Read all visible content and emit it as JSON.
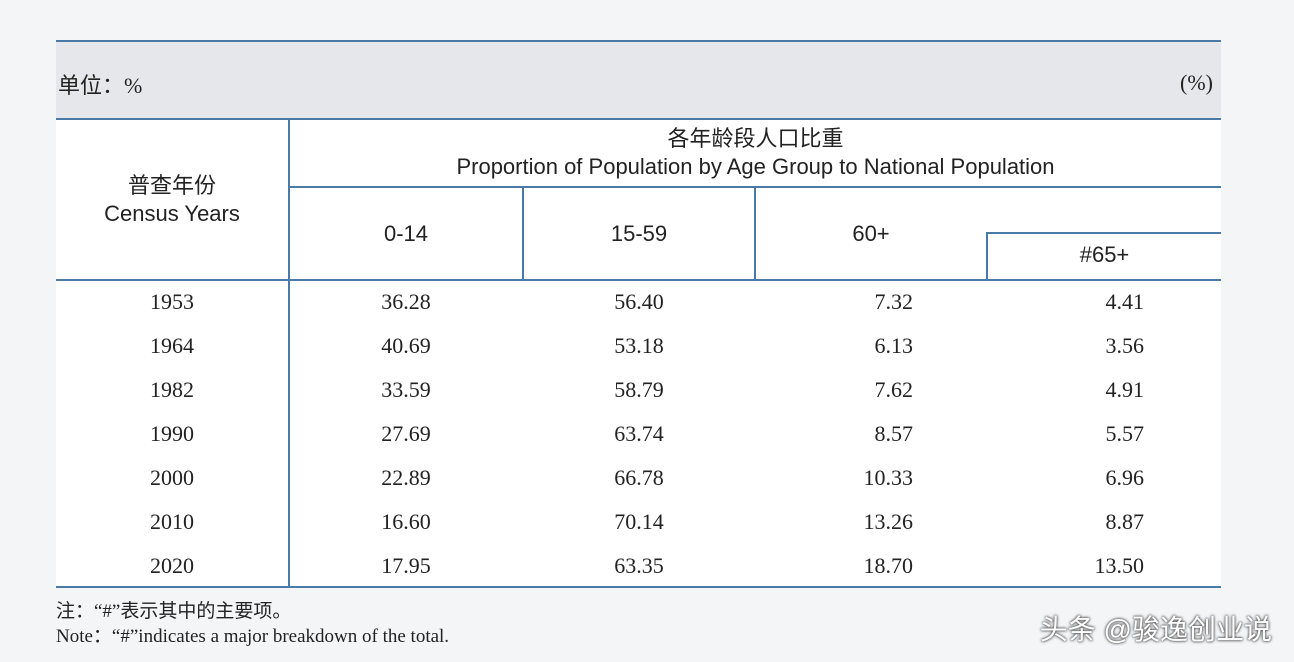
{
  "unit_label": "单位：%",
  "unit_label_en": "(%)",
  "header": {
    "census_years_zh": "普查年份",
    "census_years_en": "Census Years",
    "proportion_zh": "各年龄段人口比重",
    "proportion_en": "Proportion of Population by Age Group to National Population",
    "columns": [
      "0-14",
      "15-59",
      "60+",
      "#65+"
    ]
  },
  "rows": [
    {
      "year": "1953",
      "a": "36.28",
      "b": "56.40",
      "c": "7.32",
      "d": "4.41"
    },
    {
      "year": "1964",
      "a": "40.69",
      "b": "53.18",
      "c": "6.13",
      "d": "3.56"
    },
    {
      "year": "1982",
      "a": "33.59",
      "b": "58.79",
      "c": "7.62",
      "d": "4.91"
    },
    {
      "year": "1990",
      "a": "27.69",
      "b": "63.74",
      "c": "8.57",
      "d": "5.57"
    },
    {
      "year": "2000",
      "a": "22.89",
      "b": "66.78",
      "c": "10.33",
      "d": "6.96"
    },
    {
      "year": "2010",
      "a": "16.60",
      "b": "70.14",
      "c": "13.26",
      "d": "8.87"
    },
    {
      "year": "2020",
      "a": "17.95",
      "b": "63.35",
      "c": "18.70",
      "d": "13.50"
    }
  ],
  "note_zh": "注：“#”表示其中的主要项。",
  "note_en": "Note：“#”indicates a major breakdown of the total.",
  "watermark": "头条 @骏逸创业说"
}
